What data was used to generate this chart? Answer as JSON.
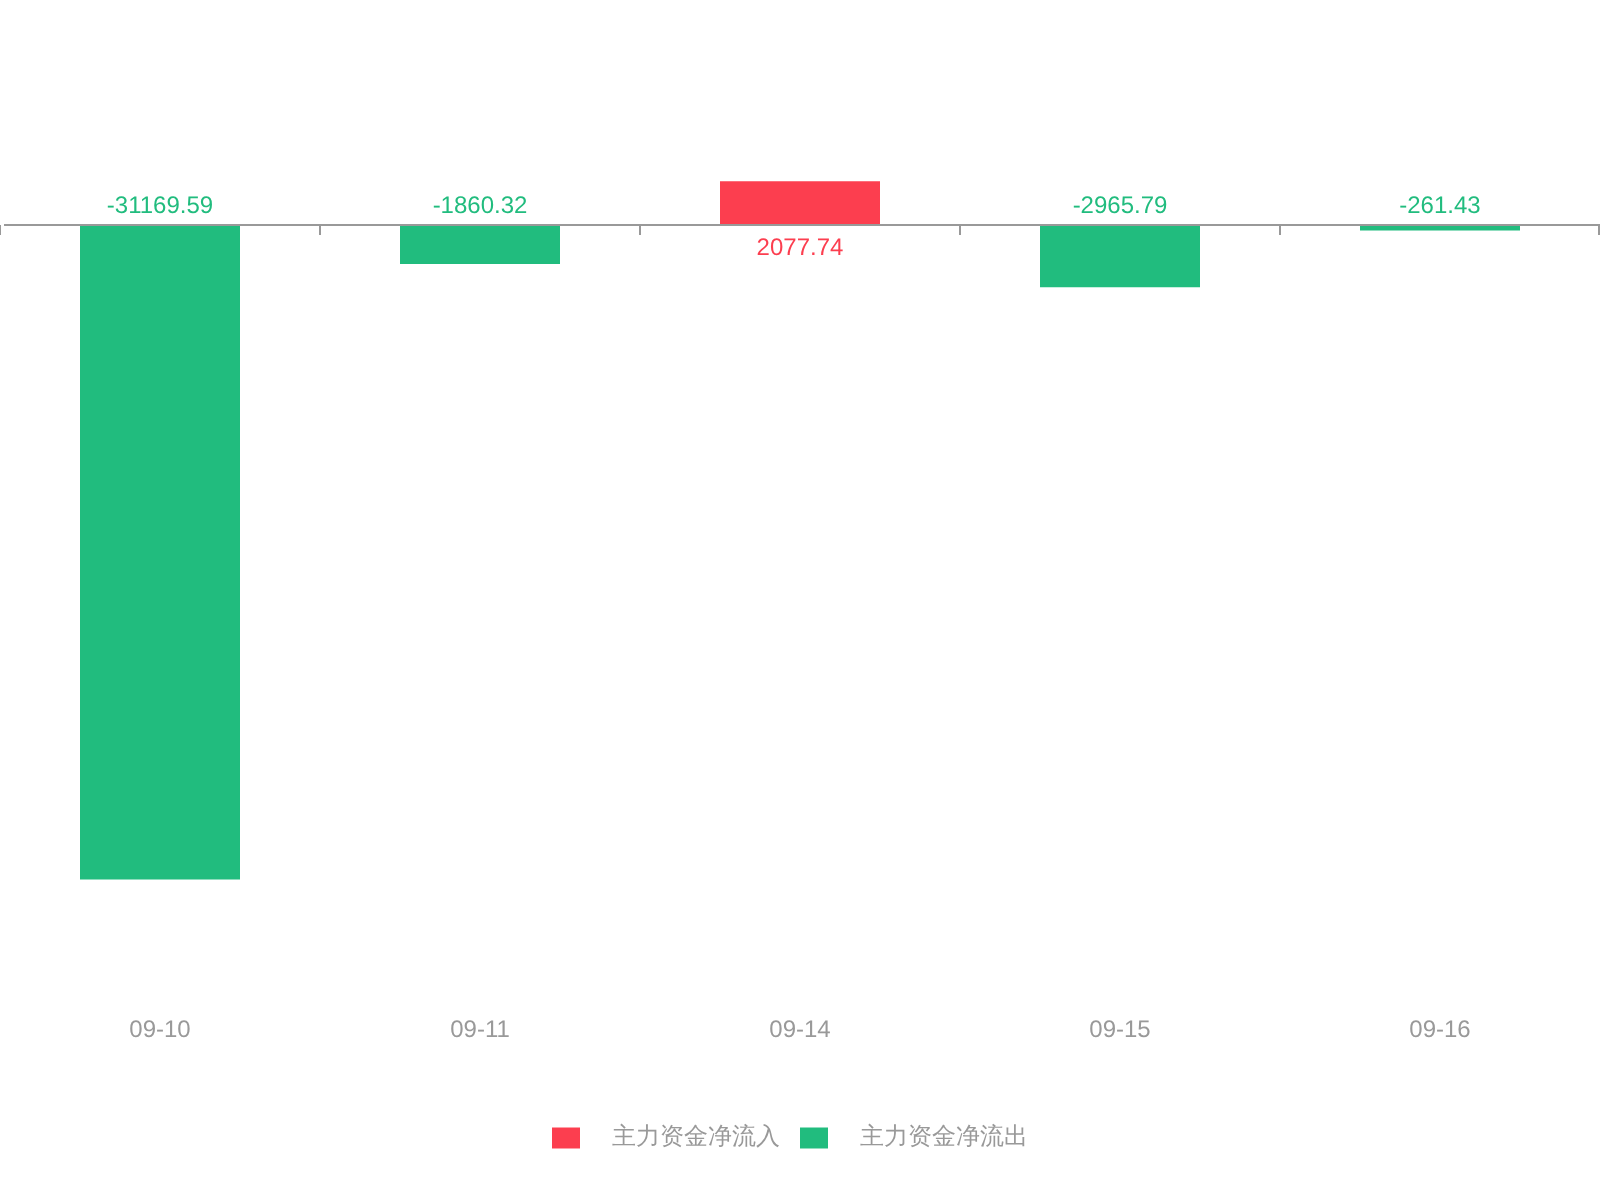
{
  "chart_data": {
    "type": "bar",
    "categories": [
      "09-10",
      "09-11",
      "09-14",
      "09-15",
      "09-16"
    ],
    "series": [
      {
        "name": "主力资金净流入",
        "color": "#fc3e4f",
        "values": [
          null,
          null,
          2077.74,
          null,
          null
        ]
      },
      {
        "name": "主力资金净流出",
        "color": "#21bc7e",
        "values": [
          -31169.59,
          -1860.32,
          null,
          -2965.79,
          -261.43
        ]
      }
    ],
    "stacked": true,
    "data_labels": true,
    "legend": "bottom",
    "tick_labels": "x"
  }
}
